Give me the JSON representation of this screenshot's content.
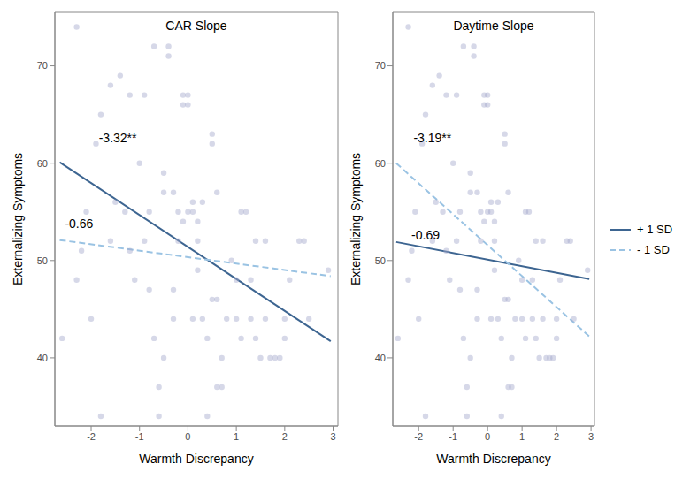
{
  "chart_data": [
    {
      "type": "scatter",
      "title": "CAR Slope",
      "x_label": "Warmth Discrepancy",
      "y_label": "Externalizing Symptoms",
      "xlim": [
        -2.75,
        3.1
      ],
      "ylim": [
        33,
        75.5
      ],
      "xticks": [
        -2,
        -1,
        0,
        1,
        2,
        3
      ],
      "yticks": [
        40,
        50,
        60,
        70
      ],
      "grid": false,
      "points": {
        "color": "#a3a9cc",
        "marker": "circle",
        "x": [
          -2.3,
          -2.6,
          -2.2,
          -2.3,
          -2.1,
          -1.9,
          -1.8,
          -1.8,
          -1.6,
          -1.5,
          -1.4,
          -1.3,
          -1.2,
          -1.2,
          -1.1,
          -1.0,
          -0.9,
          -0.9,
          -0.8,
          -0.8,
          -0.7,
          -0.7,
          -0.6,
          -0.6,
          -0.5,
          -0.5,
          -0.5,
          -0.4,
          -0.4,
          -0.3,
          -0.3,
          -0.2,
          -0.2,
          -0.1,
          -0.1,
          -0.1,
          0,
          0,
          0,
          0.1,
          0.1,
          0.1,
          0.2,
          0.2,
          0.2,
          0.3,
          0.4,
          0.4,
          0.5,
          0.5,
          0.5,
          0.6,
          0.6,
          0.6,
          0.7,
          0.7,
          0.8,
          0.9,
          1.0,
          1.0,
          1.1,
          1.1,
          1.2,
          1.3,
          1.3,
          1.4,
          1.4,
          1.5,
          1.6,
          1.6,
          1.7,
          1.8,
          1.9,
          2.0,
          2.0,
          2.1,
          2.3,
          2.4,
          2.5,
          2.9,
          -1.6,
          -2.0,
          0.3,
          -0.3
        ],
        "y": [
          74,
          42,
          51,
          48,
          55,
          62,
          34,
          65,
          68,
          56,
          69,
          55,
          51,
          67,
          48,
          60,
          52,
          67,
          55,
          47,
          72,
          42,
          34,
          37,
          40,
          57,
          59,
          72,
          71,
          57,
          44,
          52,
          55,
          66,
          54,
          67,
          67,
          55,
          66,
          56,
          55,
          44,
          52,
          54,
          49,
          56,
          34,
          42,
          46,
          63,
          62,
          37,
          57,
          46,
          37,
          40,
          44,
          50,
          44,
          48,
          55,
          42,
          55,
          48,
          44,
          42,
          52,
          40,
          44,
          52,
          40,
          40,
          40,
          42,
          44,
          48,
          52,
          52,
          44,
          49,
          52,
          44,
          44,
          47
        ]
      },
      "series": [
        {
          "name": "+ 1 SD",
          "color": "#3d6591",
          "line_style": "solid",
          "x": [
            -2.65,
            2.95
          ],
          "values": [
            60.1,
            41.7
          ]
        },
        {
          "name": "- 1 SD",
          "color": "#9ac3e3",
          "line_style": "dashed",
          "x": [
            -2.65,
            2.95
          ],
          "values": [
            52.1,
            48.4
          ]
        }
      ],
      "annotations": [
        {
          "text": "-3.32**",
          "x": -1.45,
          "y": 62.6
        },
        {
          "text": "-0.66",
          "x": -2.25,
          "y": 53.8
        }
      ]
    },
    {
      "type": "scatter",
      "title": "Daytime Slope",
      "x_label": "Warmth Discrepancy",
      "y_label": "Externalizing Symptoms",
      "xlim": [
        -2.75,
        3.1
      ],
      "ylim": [
        33,
        75.5
      ],
      "xticks": [
        -2,
        -1,
        0,
        1,
        2,
        3
      ],
      "yticks": [
        40,
        50,
        60,
        70
      ],
      "grid": false,
      "legend": "right",
      "points": {
        "color": "#a3a9cc",
        "marker": "circle",
        "x": [
          -2.3,
          -2.6,
          -2.2,
          -2.3,
          -2.1,
          -1.9,
          -1.8,
          -1.8,
          -1.6,
          -1.5,
          -1.4,
          -1.3,
          -1.2,
          -1.2,
          -1.1,
          -1.0,
          -0.9,
          -0.9,
          -0.8,
          -0.8,
          -0.7,
          -0.7,
          -0.6,
          -0.6,
          -0.5,
          -0.5,
          -0.5,
          -0.4,
          -0.4,
          -0.3,
          -0.3,
          -0.2,
          -0.2,
          -0.1,
          -0.1,
          -0.1,
          0,
          0,
          0,
          0.1,
          0.1,
          0.1,
          0.2,
          0.2,
          0.2,
          0.3,
          0.4,
          0.4,
          0.5,
          0.5,
          0.5,
          0.6,
          0.6,
          0.6,
          0.7,
          0.7,
          0.8,
          0.9,
          1.0,
          1.0,
          1.1,
          1.1,
          1.2,
          1.3,
          1.3,
          1.4,
          1.4,
          1.5,
          1.6,
          1.6,
          1.7,
          1.8,
          1.9,
          2.0,
          2.0,
          2.1,
          2.3,
          2.4,
          2.5,
          2.9,
          -1.6,
          -2.0,
          0.3,
          -0.3
        ],
        "y": [
          74,
          42,
          51,
          48,
          55,
          62,
          34,
          65,
          68,
          56,
          69,
          55,
          51,
          67,
          48,
          60,
          52,
          67,
          55,
          47,
          72,
          42,
          34,
          37,
          40,
          57,
          59,
          72,
          71,
          57,
          44,
          52,
          55,
          66,
          54,
          67,
          67,
          55,
          66,
          56,
          55,
          44,
          52,
          54,
          49,
          56,
          34,
          42,
          46,
          63,
          62,
          37,
          57,
          46,
          37,
          40,
          44,
          50,
          44,
          48,
          55,
          42,
          55,
          48,
          44,
          42,
          52,
          40,
          44,
          52,
          40,
          40,
          40,
          42,
          44,
          48,
          52,
          52,
          44,
          49,
          52,
          44,
          44,
          47
        ]
      },
      "series": [
        {
          "name": "+ 1 SD",
          "color": "#3d6591",
          "line_style": "solid",
          "x": [
            -2.65,
            2.95
          ],
          "values": [
            51.9,
            48.1
          ]
        },
        {
          "name": "- 1 SD",
          "color": "#9ac3e3",
          "line_style": "dashed",
          "x": [
            -2.65,
            2.95
          ],
          "values": [
            60.0,
            42.2
          ]
        }
      ],
      "annotations": [
        {
          "text": "-3.19**",
          "x": -1.6,
          "y": 62.6
        },
        {
          "text": "-0.69",
          "x": -1.8,
          "y": 52.6
        }
      ]
    }
  ]
}
